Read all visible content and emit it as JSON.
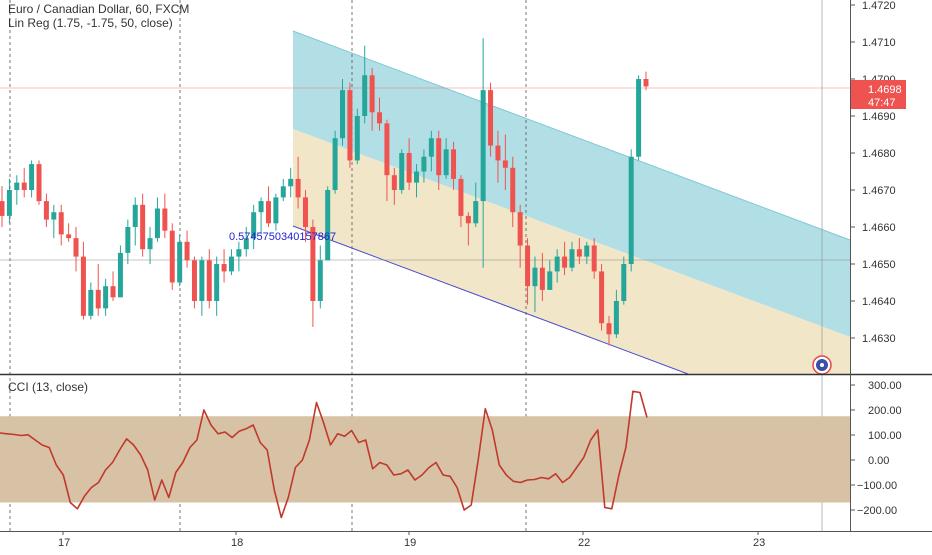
{
  "header": {
    "title": "Euro / Canadian Dollar, 60, FXCM",
    "indicator": "Lin Reg (1.75, -1.75, 50, close)",
    "cci_label": "CCI (13, close)"
  },
  "price_axis": {
    "ticks": [
      "1.4720",
      "1.4710",
      "1.4700",
      "1.4690",
      "1.4680",
      "1.4670",
      "1.4660",
      "1.4650",
      "1.4640",
      "1.4630"
    ],
    "current_price": "1.4698",
    "countdown": "47:47"
  },
  "cci_axis": {
    "ticks": [
      "300.00",
      "200.00",
      "100.00",
      "0.00",
      "−100.00",
      "−200.00"
    ]
  },
  "time_axis": {
    "labels": [
      "17",
      "18",
      "19",
      "22",
      "23"
    ]
  },
  "channel_annotation": "0.5745750340157867",
  "colors": {
    "up": "#26a69a",
    "down": "#ef5350",
    "upper_channel": "#b2dfe6",
    "lower_channel": "#f2e6c8",
    "cci_band": "#d7c2a6",
    "cci_line": "#c0392b",
    "price_line": "#ef5350",
    "annotation": "#2222cc"
  },
  "chart_data": [
    {
      "type": "candlestick",
      "title": "Euro / Canadian Dollar, 60, FXCM",
      "ylim": [
        1.462,
        1.4725
      ],
      "x_labels": [
        "17",
        "18",
        "19",
        "22",
        "23"
      ],
      "candles": [
        [
          1.4667,
          1.4671,
          1.466,
          1.4663
        ],
        [
          1.4663,
          1.4673,
          1.4661,
          1.467
        ],
        [
          1.467,
          1.4674,
          1.4666,
          1.4672
        ],
        [
          1.4672,
          1.4676,
          1.4668,
          1.467
        ],
        [
          1.467,
          1.4678,
          1.4668,
          1.4677
        ],
        [
          1.4677,
          1.4678,
          1.4666,
          1.4667
        ],
        [
          1.4667,
          1.4669,
          1.466,
          1.4662
        ],
        [
          1.4662,
          1.4666,
          1.4657,
          1.4664
        ],
        [
          1.4664,
          1.4666,
          1.4655,
          1.4658
        ],
        [
          1.4658,
          1.4661,
          1.4656,
          1.4657
        ],
        [
          1.4657,
          1.466,
          1.4648,
          1.4652
        ],
        [
          1.4652,
          1.4656,
          1.4635,
          1.4636
        ],
        [
          1.4636,
          1.4645,
          1.4635,
          1.4643
        ],
        [
          1.4643,
          1.465,
          1.4636,
          1.4638
        ],
        [
          1.4638,
          1.4646,
          1.4636,
          1.4644
        ],
        [
          1.4644,
          1.4648,
          1.464,
          1.4641
        ],
        [
          1.4641,
          1.4655,
          1.4641,
          1.4653
        ],
        [
          1.4653,
          1.4662,
          1.465,
          1.466
        ],
        [
          1.466,
          1.4668,
          1.4655,
          1.4666
        ],
        [
          1.4666,
          1.4669,
          1.4652,
          1.4654
        ],
        [
          1.4654,
          1.466,
          1.465,
          1.4657
        ],
        [
          1.4657,
          1.4668,
          1.4656,
          1.4665
        ],
        [
          1.4665,
          1.4669,
          1.4657,
          1.4659
        ],
        [
          1.4659,
          1.4661,
          1.4643,
          1.4645
        ],
        [
          1.4645,
          1.4658,
          1.4644,
          1.4656
        ],
        [
          1.4656,
          1.4659,
          1.4649,
          1.4651
        ],
        [
          1.4651,
          1.4652,
          1.4638,
          1.464
        ],
        [
          1.464,
          1.4652,
          1.4636,
          1.4651
        ],
        [
          1.4651,
          1.4654,
          1.4638,
          1.464
        ],
        [
          1.464,
          1.4652,
          1.4636,
          1.465
        ],
        [
          1.465,
          1.4654,
          1.4645,
          1.4648
        ],
        [
          1.4648,
          1.4654,
          1.4647,
          1.4652
        ],
        [
          1.4652,
          1.4656,
          1.4648,
          1.4654
        ],
        [
          1.4654,
          1.466,
          1.4652,
          1.4657
        ],
        [
          1.4657,
          1.4666,
          1.4654,
          1.4664
        ],
        [
          1.4664,
          1.4668,
          1.4658,
          1.4667
        ],
        [
          1.4667,
          1.4671,
          1.466,
          1.4661
        ],
        [
          1.4661,
          1.4669,
          1.4659,
          1.4668
        ],
        [
          1.4668,
          1.4673,
          1.4667,
          1.4671
        ],
        [
          1.4671,
          1.4676,
          1.4668,
          1.4673
        ],
        [
          1.4673,
          1.4679,
          1.4665,
          1.4668
        ],
        [
          1.4668,
          1.467,
          1.4656,
          1.466
        ],
        [
          1.466,
          1.4662,
          1.4633,
          1.464
        ],
        [
          1.464,
          1.4655,
          1.4638,
          1.4651
        ],
        [
          1.4651,
          1.4671,
          1.4651,
          1.467
        ],
        [
          1.467,
          1.4686,
          1.4669,
          1.4684
        ],
        [
          1.4684,
          1.47,
          1.4682,
          1.4697
        ],
        [
          1.4697,
          1.4699,
          1.4676,
          1.4678
        ],
        [
          1.4678,
          1.4692,
          1.4677,
          1.469
        ],
        [
          1.469,
          1.4709,
          1.4688,
          1.4701
        ],
        [
          1.4701,
          1.4703,
          1.4686,
          1.4691
        ],
        [
          1.4691,
          1.4695,
          1.4686,
          1.4688
        ],
        [
          1.4688,
          1.4689,
          1.4667,
          1.4674
        ],
        [
          1.4674,
          1.4676,
          1.4666,
          1.467
        ],
        [
          1.467,
          1.4681,
          1.4669,
          1.468
        ],
        [
          1.468,
          1.4684,
          1.467,
          1.4672
        ],
        [
          1.4672,
          1.4677,
          1.4668,
          1.4675
        ],
        [
          1.4675,
          1.4681,
          1.4672,
          1.4679
        ],
        [
          1.4679,
          1.4686,
          1.4675,
          1.4684
        ],
        [
          1.4684,
          1.4686,
          1.467,
          1.4674
        ],
        [
          1.4674,
          1.4684,
          1.4673,
          1.4681
        ],
        [
          1.4681,
          1.4683,
          1.467,
          1.4673
        ],
        [
          1.4673,
          1.4674,
          1.466,
          1.4663
        ],
        [
          1.4663,
          1.4664,
          1.4655,
          1.4661
        ],
        [
          1.4661,
          1.4672,
          1.466,
          1.4667
        ],
        [
          1.4667,
          1.4711,
          1.4649,
          1.4697
        ],
        [
          1.4697,
          1.4699,
          1.4679,
          1.4682
        ],
        [
          1.4682,
          1.4686,
          1.4672,
          1.4678
        ],
        [
          1.4678,
          1.4685,
          1.467,
          1.4676
        ],
        [
          1.4676,
          1.4679,
          1.466,
          1.4664
        ],
        [
          1.4664,
          1.4666,
          1.4649,
          1.4655
        ],
        [
          1.4655,
          1.4657,
          1.4639,
          1.4644
        ],
        [
          1.4644,
          1.4652,
          1.4637,
          1.4649
        ],
        [
          1.4649,
          1.4653,
          1.464,
          1.4643
        ],
        [
          1.4643,
          1.4651,
          1.4643,
          1.4648
        ],
        [
          1.4648,
          1.4654,
          1.4645,
          1.4652
        ],
        [
          1.4652,
          1.4656,
          1.4647,
          1.4649
        ],
        [
          1.4649,
          1.4656,
          1.4648,
          1.4654
        ],
        [
          1.4654,
          1.4657,
          1.465,
          1.4652
        ],
        [
          1.4652,
          1.4656,
          1.465,
          1.4655
        ],
        [
          1.4655,
          1.4657,
          1.4646,
          1.4648
        ],
        [
          1.4648,
          1.465,
          1.4632,
          1.4634
        ],
        [
          1.4634,
          1.4636,
          1.4628,
          1.4631
        ],
        [
          1.4631,
          1.4643,
          1.463,
          1.464
        ],
        [
          1.464,
          1.4652,
          1.4639,
          1.465
        ],
        [
          1.465,
          1.4681,
          1.4648,
          1.4679
        ],
        [
          1.4679,
          1.4701,
          1.4678,
          1.47
        ],
        [
          1.47,
          1.4702,
          1.4697,
          1.4698
        ]
      ]
    },
    {
      "type": "line",
      "title": "CCI (13, close)",
      "ylim": [
        -260,
        320
      ],
      "band": [
        -170,
        175
      ],
      "values": [
        108,
        105,
        102,
        98,
        101,
        80,
        60,
        50,
        -20,
        -60,
        -170,
        -195,
        -145,
        -110,
        -90,
        -40,
        -10,
        40,
        85,
        60,
        20,
        -40,
        -160,
        -80,
        -150,
        -50,
        -10,
        50,
        80,
        200,
        140,
        105,
        112,
        90,
        115,
        125,
        140,
        70,
        40,
        -120,
        -230,
        -150,
        -30,
        0,
        80,
        230,
        150,
        60,
        105,
        95,
        118,
        70,
        80,
        -35,
        -10,
        -20,
        -60,
        -55,
        -40,
        -80,
        -60,
        -30,
        -10,
        -60,
        -65,
        -110,
        -200,
        -180,
        0,
        205,
        120,
        -20,
        -60,
        -85,
        -90,
        -80,
        -78,
        -70,
        -75,
        -55,
        -90,
        -70,
        -30,
        10,
        80,
        120,
        -190,
        -195,
        -60,
        50,
        275,
        270,
        170
      ]
    }
  ]
}
